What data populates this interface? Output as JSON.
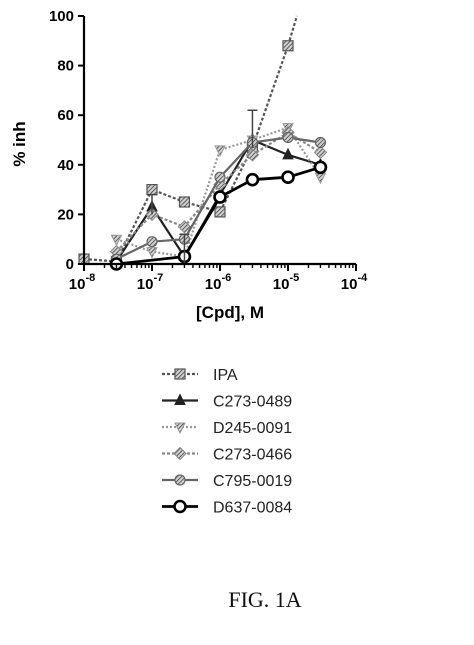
{
  "caption": "FIG. 1A",
  "chart_data": {
    "type": "line",
    "xlabel": "[Cpd], M",
    "ylabel": "% inh",
    "xscale": "log",
    "xlim": [
      1e-08,
      0.0001
    ],
    "ylim": [
      0,
      100
    ],
    "x_ticks": [
      {
        "value": 1e-08,
        "base": "10",
        "exp": "-8"
      },
      {
        "value": 1e-07,
        "base": "10",
        "exp": "-7"
      },
      {
        "value": 1e-06,
        "base": "10",
        "exp": "-6"
      },
      {
        "value": 1e-05,
        "base": "10",
        "exp": "-5"
      },
      {
        "value": 0.0001,
        "base": "10",
        "exp": "-4"
      }
    ],
    "y_ticks": [
      {
        "value": 0,
        "label": "0"
      },
      {
        "value": 20,
        "label": "20"
      },
      {
        "value": 40,
        "label": "40"
      },
      {
        "value": 60,
        "label": "60"
      },
      {
        "value": 80,
        "label": "80"
      },
      {
        "value": 100,
        "label": "100"
      }
    ],
    "grid": false,
    "legend_position": "below",
    "series": [
      {
        "name": "IPA",
        "marker": "square",
        "color": "#555555",
        "dash": "3,2",
        "x": [
          1e-08,
          3e-08,
          1e-07,
          3e-07,
          1e-06,
          3e-06,
          1e-05,
          1.35e-05
        ],
        "y": [
          2,
          1,
          30,
          25,
          21,
          47,
          88,
          100
        ]
      },
      {
        "name": "C273-0489",
        "marker": "triangle",
        "color": "#222222",
        "dash": "",
        "x": [
          3e-08,
          1e-07,
          3e-07,
          1e-06,
          3e-06,
          1e-05,
          3e-05
        ],
        "y": [
          1,
          23,
          3,
          28,
          50,
          44,
          40
        ]
      },
      {
        "name": "D245-0091",
        "marker": "triangle-down",
        "color": "#999999",
        "dash": "2,2",
        "x": [
          3e-08,
          1e-07,
          3e-07,
          1e-06,
          3e-06,
          1e-05,
          3e-05
        ],
        "y": [
          10,
          5,
          3,
          46,
          50,
          55,
          35
        ]
      },
      {
        "name": "C273-0466",
        "marker": "diamond",
        "color": "#888888",
        "dash": "3,2",
        "x": [
          3e-08,
          1e-07,
          3e-07,
          1e-06,
          3e-06,
          1e-05,
          3e-05
        ],
        "y": [
          5,
          20,
          15,
          32,
          44,
          53,
          45
        ]
      },
      {
        "name": "C795-0019",
        "marker": "circle-hatched",
        "color": "#666666",
        "dash": "",
        "x": [
          3e-08,
          1e-07,
          3e-07,
          1e-06,
          3e-06,
          1e-05,
          3e-05
        ],
        "y": [
          2,
          9,
          10,
          35,
          49,
          51,
          49
        ]
      },
      {
        "name": "D637-0084",
        "marker": "circle-open",
        "color": "#000000",
        "dash": "",
        "x": [
          3e-08,
          3e-07,
          1e-06,
          3e-06,
          1e-05,
          3e-05
        ],
        "y": [
          0,
          3,
          27,
          34,
          35,
          39
        ]
      }
    ],
    "error_bars": [
      {
        "series": "IPA",
        "x": 3e-06,
        "low": 47,
        "high": 62
      },
      {
        "series": "C273-0489",
        "x": 1e-07,
        "low": 20,
        "high": 28
      },
      {
        "series": "C273-0489",
        "x": 3e-07,
        "low": 0,
        "high": 12
      }
    ]
  }
}
